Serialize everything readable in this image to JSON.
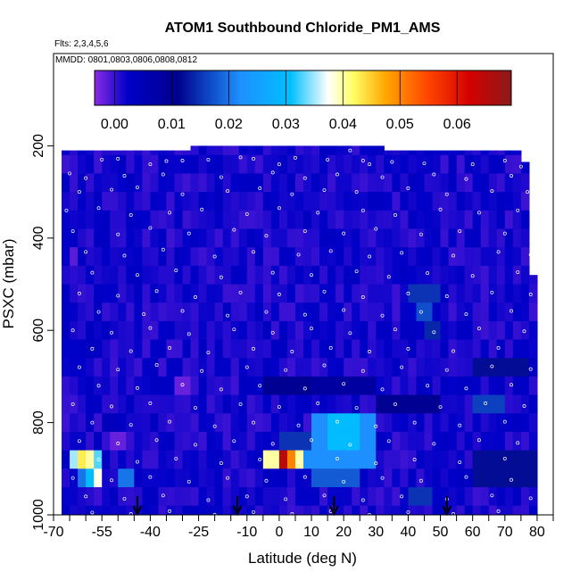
{
  "chart_data": {
    "type": "heatmap",
    "title": "ATOM1 Southbound Chloride_PM1_AMS",
    "flights_note": "Flts: 2,3,4,5,6",
    "dates_note": "MMDD: 0801,0803,0806,0808,0812",
    "xlabel": "Latitude (deg N)",
    "ylabel": "PSXC (mbar)",
    "xlim": [
      -70,
      85
    ],
    "ylim": [
      1000,
      0
    ],
    "x_ticks": [
      -70,
      -55,
      -40,
      -25,
      -10,
      0,
      10,
      20,
      30,
      40,
      50,
      60,
      70,
      80
    ],
    "x_minor_ticks": [
      -65,
      -60,
      -50,
      -45,
      -35,
      -30,
      -20,
      -15,
      -5,
      5,
      15,
      25,
      35,
      45,
      55,
      65,
      75,
      85
    ],
    "y_ticks": [
      200,
      400,
      600,
      800,
      1000
    ],
    "colorbar": {
      "ticks": [
        0.0,
        0.01,
        0.02,
        0.03,
        0.04,
        0.05,
        0.06
      ],
      "tick_labels": [
        "0.00",
        "0.01",
        "0.02",
        "0.03",
        "0.04",
        "0.05",
        "0.06"
      ],
      "range": [
        -0.0035,
        0.0695
      ],
      "colors": [
        "#8a2be2",
        "#0000c8",
        "#00008b",
        "#1e90ff",
        "#00bfff",
        "#ffffff",
        "#ffff66",
        "#ffa500",
        "#ff4500",
        "#d40000",
        "#8b1a1a"
      ],
      "color_stops": [
        0.0,
        0.08,
        0.2,
        0.35,
        0.47,
        0.56,
        0.62,
        0.7,
        0.8,
        0.9,
        1.0
      ]
    },
    "background_value": 0.0015,
    "lat_range": [
      -67.5,
      80
    ],
    "level_bounds": [
      [
        200,
        220
      ],
      [
        220,
        260
      ],
      [
        260,
        300
      ],
      [
        300,
        340
      ],
      [
        340,
        380
      ],
      [
        380,
        420
      ],
      [
        420,
        460
      ],
      [
        460,
        500
      ],
      [
        500,
        540
      ],
      [
        540,
        580
      ],
      [
        580,
        620
      ],
      [
        620,
        660
      ],
      [
        660,
        700
      ],
      [
        700,
        740
      ],
      [
        740,
        780
      ],
      [
        780,
        820
      ],
      [
        820,
        860
      ],
      [
        860,
        900
      ],
      [
        900,
        940
      ],
      [
        940,
        980
      ],
      [
        980,
        1010
      ]
    ],
    "column_top_pressure": [
      [
        -67.5,
        -27.5,
        210
      ],
      [
        -27.5,
        32.5,
        165
      ],
      [
        32.5,
        76,
        210
      ],
      [
        76,
        78,
        235
      ],
      [
        78,
        80,
        480
      ]
    ],
    "features": [
      {
        "lat0": -65,
        "lat1": -58,
        "p0": 860,
        "p1": 900,
        "v": 0.035
      },
      {
        "lat0": -62,
        "lat1": -60,
        "p0": 860,
        "p1": 900,
        "v": 0.043
      },
      {
        "lat0": -60,
        "lat1": -58,
        "p0": 860,
        "p1": 900,
        "v": 0.04
      },
      {
        "lat0": -58,
        "lat1": -55,
        "p0": 860,
        "p1": 900,
        "v": 0.033
      },
      {
        "lat0": -62,
        "lat1": -55,
        "p0": 900,
        "p1": 940,
        "v": 0.02
      },
      {
        "lat0": -60,
        "lat1": -55,
        "p0": 900,
        "p1": 940,
        "v": 0.03
      },
      {
        "lat0": -58,
        "lat1": -55,
        "p0": 900,
        "p1": 940,
        "v": 0.038
      },
      {
        "lat0": -50,
        "lat1": -45,
        "p0": 900,
        "p1": 940,
        "v": 0.02
      },
      {
        "lat0": -56,
        "lat1": -50,
        "p0": 780,
        "p1": 820,
        "v": 0.004
      },
      {
        "lat0": -53,
        "lat1": -48,
        "p0": 820,
        "p1": 860,
        "v": -0.002
      },
      {
        "lat0": -66,
        "lat1": -63,
        "p0": 420,
        "p1": 460,
        "v": -0.0015
      },
      {
        "lat0": -32,
        "lat1": -28,
        "p0": 700,
        "p1": 740,
        "v": -0.002
      },
      {
        "lat0": -28,
        "lat1": -25,
        "p0": 700,
        "p1": 740,
        "v": 0.0
      },
      {
        "lat0": 0,
        "lat1": 15,
        "p0": 820,
        "p1": 860,
        "v": 0.015
      },
      {
        "lat0": 10,
        "lat1": 30,
        "p0": 780,
        "p1": 860,
        "v": 0.022
      },
      {
        "lat0": 15,
        "lat1": 25,
        "p0": 780,
        "p1": 860,
        "v": 0.03
      },
      {
        "lat0": -5,
        "lat1": 0,
        "p0": 860,
        "p1": 900,
        "v": 0.04
      },
      {
        "lat0": 0,
        "lat1": 2,
        "p0": 860,
        "p1": 900,
        "v": 0.065
      },
      {
        "lat0": 2,
        "lat1": 5,
        "p0": 860,
        "p1": 900,
        "v": 0.05
      },
      {
        "lat0": 5,
        "lat1": 8,
        "p0": 860,
        "p1": 900,
        "v": 0.04
      },
      {
        "lat0": 8,
        "lat1": 30,
        "p0": 860,
        "p1": 900,
        "v": 0.022
      },
      {
        "lat0": 10,
        "lat1": 25,
        "p0": 900,
        "p1": 940,
        "v": 0.018
      },
      {
        "lat0": 40,
        "lat1": 50,
        "p0": 500,
        "p1": 540,
        "v": 0.015
      },
      {
        "lat0": 42,
        "lat1": 48,
        "p0": 540,
        "p1": 580,
        "v": 0.017
      },
      {
        "lat0": 45,
        "lat1": 50,
        "p0": 580,
        "p1": 620,
        "v": 0.014
      },
      {
        "lat0": 60,
        "lat1": 78,
        "p0": 660,
        "p1": 700,
        "v": 0.012
      },
      {
        "lat0": 60,
        "lat1": 70,
        "p0": 740,
        "p1": 780,
        "v": 0.016
      },
      {
        "lat0": 40,
        "lat1": 48,
        "p0": 940,
        "p1": 980,
        "v": 0.015
      },
      {
        "lat0": 30,
        "lat1": 50,
        "p0": 740,
        "p1": 780,
        "v": 0.01
      },
      {
        "lat0": 10,
        "lat1": 30,
        "p0": 700,
        "p1": 740,
        "v": 0.008
      },
      {
        "lat0": -5,
        "lat1": 10,
        "p0": 700,
        "p1": 740,
        "v": 0.01
      },
      {
        "lat0": 60,
        "lat1": 80,
        "p0": 860,
        "p1": 940,
        "v": 0.012
      }
    ],
    "sample_points": [
      [
        -55,
        230
      ],
      [
        -50,
        228
      ],
      [
        -40,
        240
      ],
      [
        -35,
        233
      ],
      [
        -30,
        232
      ],
      [
        -22,
        230
      ],
      [
        -12,
        225
      ],
      [
        -8,
        228
      ],
      [
        0,
        240
      ],
      [
        5,
        226
      ],
      [
        15,
        230
      ],
      [
        22,
        210
      ],
      [
        24,
        195
      ],
      [
        26,
        232
      ],
      [
        28,
        240
      ],
      [
        35,
        235
      ],
      [
        45,
        238
      ],
      [
        60,
        240
      ],
      [
        70,
        232
      ],
      [
        75,
        245
      ],
      [
        -65,
        260
      ],
      [
        -60,
        270
      ],
      [
        -48,
        265
      ],
      [
        -36,
        262
      ],
      [
        -18,
        268
      ],
      [
        -2,
        258
      ],
      [
        8,
        270
      ],
      [
        18,
        262
      ],
      [
        32,
        268
      ],
      [
        48,
        262
      ],
      [
        58,
        272
      ],
      [
        72,
        265
      ],
      [
        -62,
        300
      ],
      [
        -52,
        295
      ],
      [
        -44,
        290
      ],
      [
        -30,
        305
      ],
      [
        -16,
        298
      ],
      [
        -6,
        292
      ],
      [
        4,
        305
      ],
      [
        14,
        296
      ],
      [
        24,
        300
      ],
      [
        40,
        292
      ],
      [
        52,
        305
      ],
      [
        66,
        298
      ],
      [
        77,
        300
      ],
      [
        -66,
        340
      ],
      [
        -56,
        335
      ],
      [
        -46,
        350
      ],
      [
        -34,
        345
      ],
      [
        -24,
        338
      ],
      [
        -10,
        348
      ],
      [
        0,
        335
      ],
      [
        12,
        345
      ],
      [
        26,
        340
      ],
      [
        36,
        350
      ],
      [
        50,
        338
      ],
      [
        62,
        345
      ],
      [
        74,
        340
      ],
      [
        -64,
        385
      ],
      [
        -50,
        392
      ],
      [
        -40,
        378
      ],
      [
        -28,
        390
      ],
      [
        -14,
        382
      ],
      [
        -4,
        395
      ],
      [
        8,
        385
      ],
      [
        20,
        390
      ],
      [
        30,
        380
      ],
      [
        44,
        392
      ],
      [
        56,
        385
      ],
      [
        70,
        390
      ],
      [
        -60,
        430
      ],
      [
        -48,
        438
      ],
      [
        -36,
        425
      ],
      [
        -20,
        440
      ],
      [
        -8,
        430
      ],
      [
        6,
        436
      ],
      [
        16,
        428
      ],
      [
        28,
        440
      ],
      [
        38,
        432
      ],
      [
        54,
        438
      ],
      [
        68,
        430
      ],
      [
        78,
        436
      ],
      [
        -58,
        475
      ],
      [
        -44,
        480
      ],
      [
        -32,
        470
      ],
      [
        -18,
        485
      ],
      [
        -2,
        475
      ],
      [
        10,
        480
      ],
      [
        24,
        472
      ],
      [
        34,
        484
      ],
      [
        46,
        476
      ],
      [
        60,
        482
      ],
      [
        74,
        474
      ],
      [
        -62,
        520
      ],
      [
        -50,
        525
      ],
      [
        -38,
        515
      ],
      [
        -26,
        528
      ],
      [
        -12,
        518
      ],
      [
        0,
        522
      ],
      [
        14,
        516
      ],
      [
        26,
        528
      ],
      [
        40,
        520
      ],
      [
        52,
        526
      ],
      [
        66,
        518
      ],
      [
        78,
        522
      ],
      [
        -56,
        560
      ],
      [
        -42,
        565
      ],
      [
        -30,
        558
      ],
      [
        -16,
        568
      ],
      [
        -4,
        560
      ],
      [
        8,
        566
      ],
      [
        20,
        556
      ],
      [
        32,
        568
      ],
      [
        44,
        560
      ],
      [
        58,
        565
      ],
      [
        72,
        558
      ],
      [
        -64,
        600
      ],
      [
        -52,
        605
      ],
      [
        -40,
        595
      ],
      [
        -28,
        608
      ],
      [
        -14,
        598
      ],
      [
        -2,
        605
      ],
      [
        10,
        596
      ],
      [
        22,
        606
      ],
      [
        36,
        598
      ],
      [
        48,
        604
      ],
      [
        62,
        596
      ],
      [
        76,
        602
      ],
      [
        -58,
        640
      ],
      [
        -46,
        645
      ],
      [
        -34,
        638
      ],
      [
        -22,
        648
      ],
      [
        -8,
        640
      ],
      [
        4,
        646
      ],
      [
        16,
        638
      ],
      [
        28,
        646
      ],
      [
        40,
        640
      ],
      [
        54,
        645
      ],
      [
        68,
        638
      ],
      [
        -62,
        680
      ],
      [
        -50,
        685
      ],
      [
        -38,
        675
      ],
      [
        -24,
        688
      ],
      [
        -10,
        680
      ],
      [
        2,
        686
      ],
      [
        14,
        676
      ],
      [
        26,
        688
      ],
      [
        38,
        680
      ],
      [
        52,
        686
      ],
      [
        66,
        678
      ],
      [
        78,
        684
      ],
      [
        -56,
        720
      ],
      [
        -44,
        725
      ],
      [
        -30,
        718
      ],
      [
        -18,
        728
      ],
      [
        -6,
        720
      ],
      [
        8,
        726
      ],
      [
        20,
        716
      ],
      [
        32,
        728
      ],
      [
        46,
        720
      ],
      [
        58,
        726
      ],
      [
        72,
        718
      ],
      [
        -64,
        760
      ],
      [
        -52,
        765
      ],
      [
        -40,
        758
      ],
      [
        -26,
        768
      ],
      [
        -12,
        760
      ],
      [
        0,
        766
      ],
      [
        12,
        758
      ],
      [
        24,
        768
      ],
      [
        36,
        760
      ],
      [
        50,
        766
      ],
      [
        64,
        758
      ],
      [
        76,
        764
      ],
      [
        -58,
        800
      ],
      [
        -46,
        805
      ],
      [
        -34,
        798
      ],
      [
        -20,
        808
      ],
      [
        -8,
        800
      ],
      [
        6,
        806
      ],
      [
        18,
        798
      ],
      [
        30,
        808
      ],
      [
        42,
        800
      ],
      [
        56,
        806
      ],
      [
        70,
        798
      ],
      [
        -62,
        840
      ],
      [
        -50,
        845
      ],
      [
        -38,
        838
      ],
      [
        -26,
        848
      ],
      [
        -14,
        840
      ],
      [
        -2,
        846
      ],
      [
        10,
        838
      ],
      [
        22,
        848
      ],
      [
        34,
        840
      ],
      [
        48,
        846
      ],
      [
        62,
        838
      ],
      [
        74,
        844
      ],
      [
        -56,
        880
      ],
      [
        -44,
        885
      ],
      [
        -32,
        878
      ],
      [
        -18,
        888
      ],
      [
        -6,
        880
      ],
      [
        6,
        886
      ],
      [
        18,
        878
      ],
      [
        30,
        888
      ],
      [
        42,
        880
      ],
      [
        56,
        886
      ],
      [
        70,
        878
      ],
      [
        -64,
        920
      ],
      [
        -52,
        925
      ],
      [
        -40,
        918
      ],
      [
        -28,
        928
      ],
      [
        -16,
        920
      ],
      [
        -4,
        926
      ],
      [
        8,
        918
      ],
      [
        20,
        928
      ],
      [
        32,
        920
      ],
      [
        44,
        926
      ],
      [
        58,
        918
      ],
      [
        72,
        924
      ],
      [
        -60,
        960
      ],
      [
        -48,
        965
      ],
      [
        -36,
        958
      ],
      [
        -22,
        968
      ],
      [
        -10,
        960
      ],
      [
        2,
        966
      ],
      [
        14,
        958
      ],
      [
        26,
        968
      ],
      [
        38,
        960
      ],
      [
        52,
        966
      ],
      [
        66,
        958
      ],
      [
        78,
        964
      ],
      [
        -58,
        995
      ],
      [
        -46,
        998
      ],
      [
        -34,
        992
      ],
      [
        -20,
        1000
      ],
      [
        -8,
        994
      ],
      [
        4,
        998
      ],
      [
        16,
        992
      ],
      [
        28,
        1000
      ],
      [
        40,
        994
      ],
      [
        54,
        998
      ],
      [
        68,
        992
      ]
    ],
    "arrow_latitudes": [
      -44,
      -13,
      17,
      52
    ]
  }
}
